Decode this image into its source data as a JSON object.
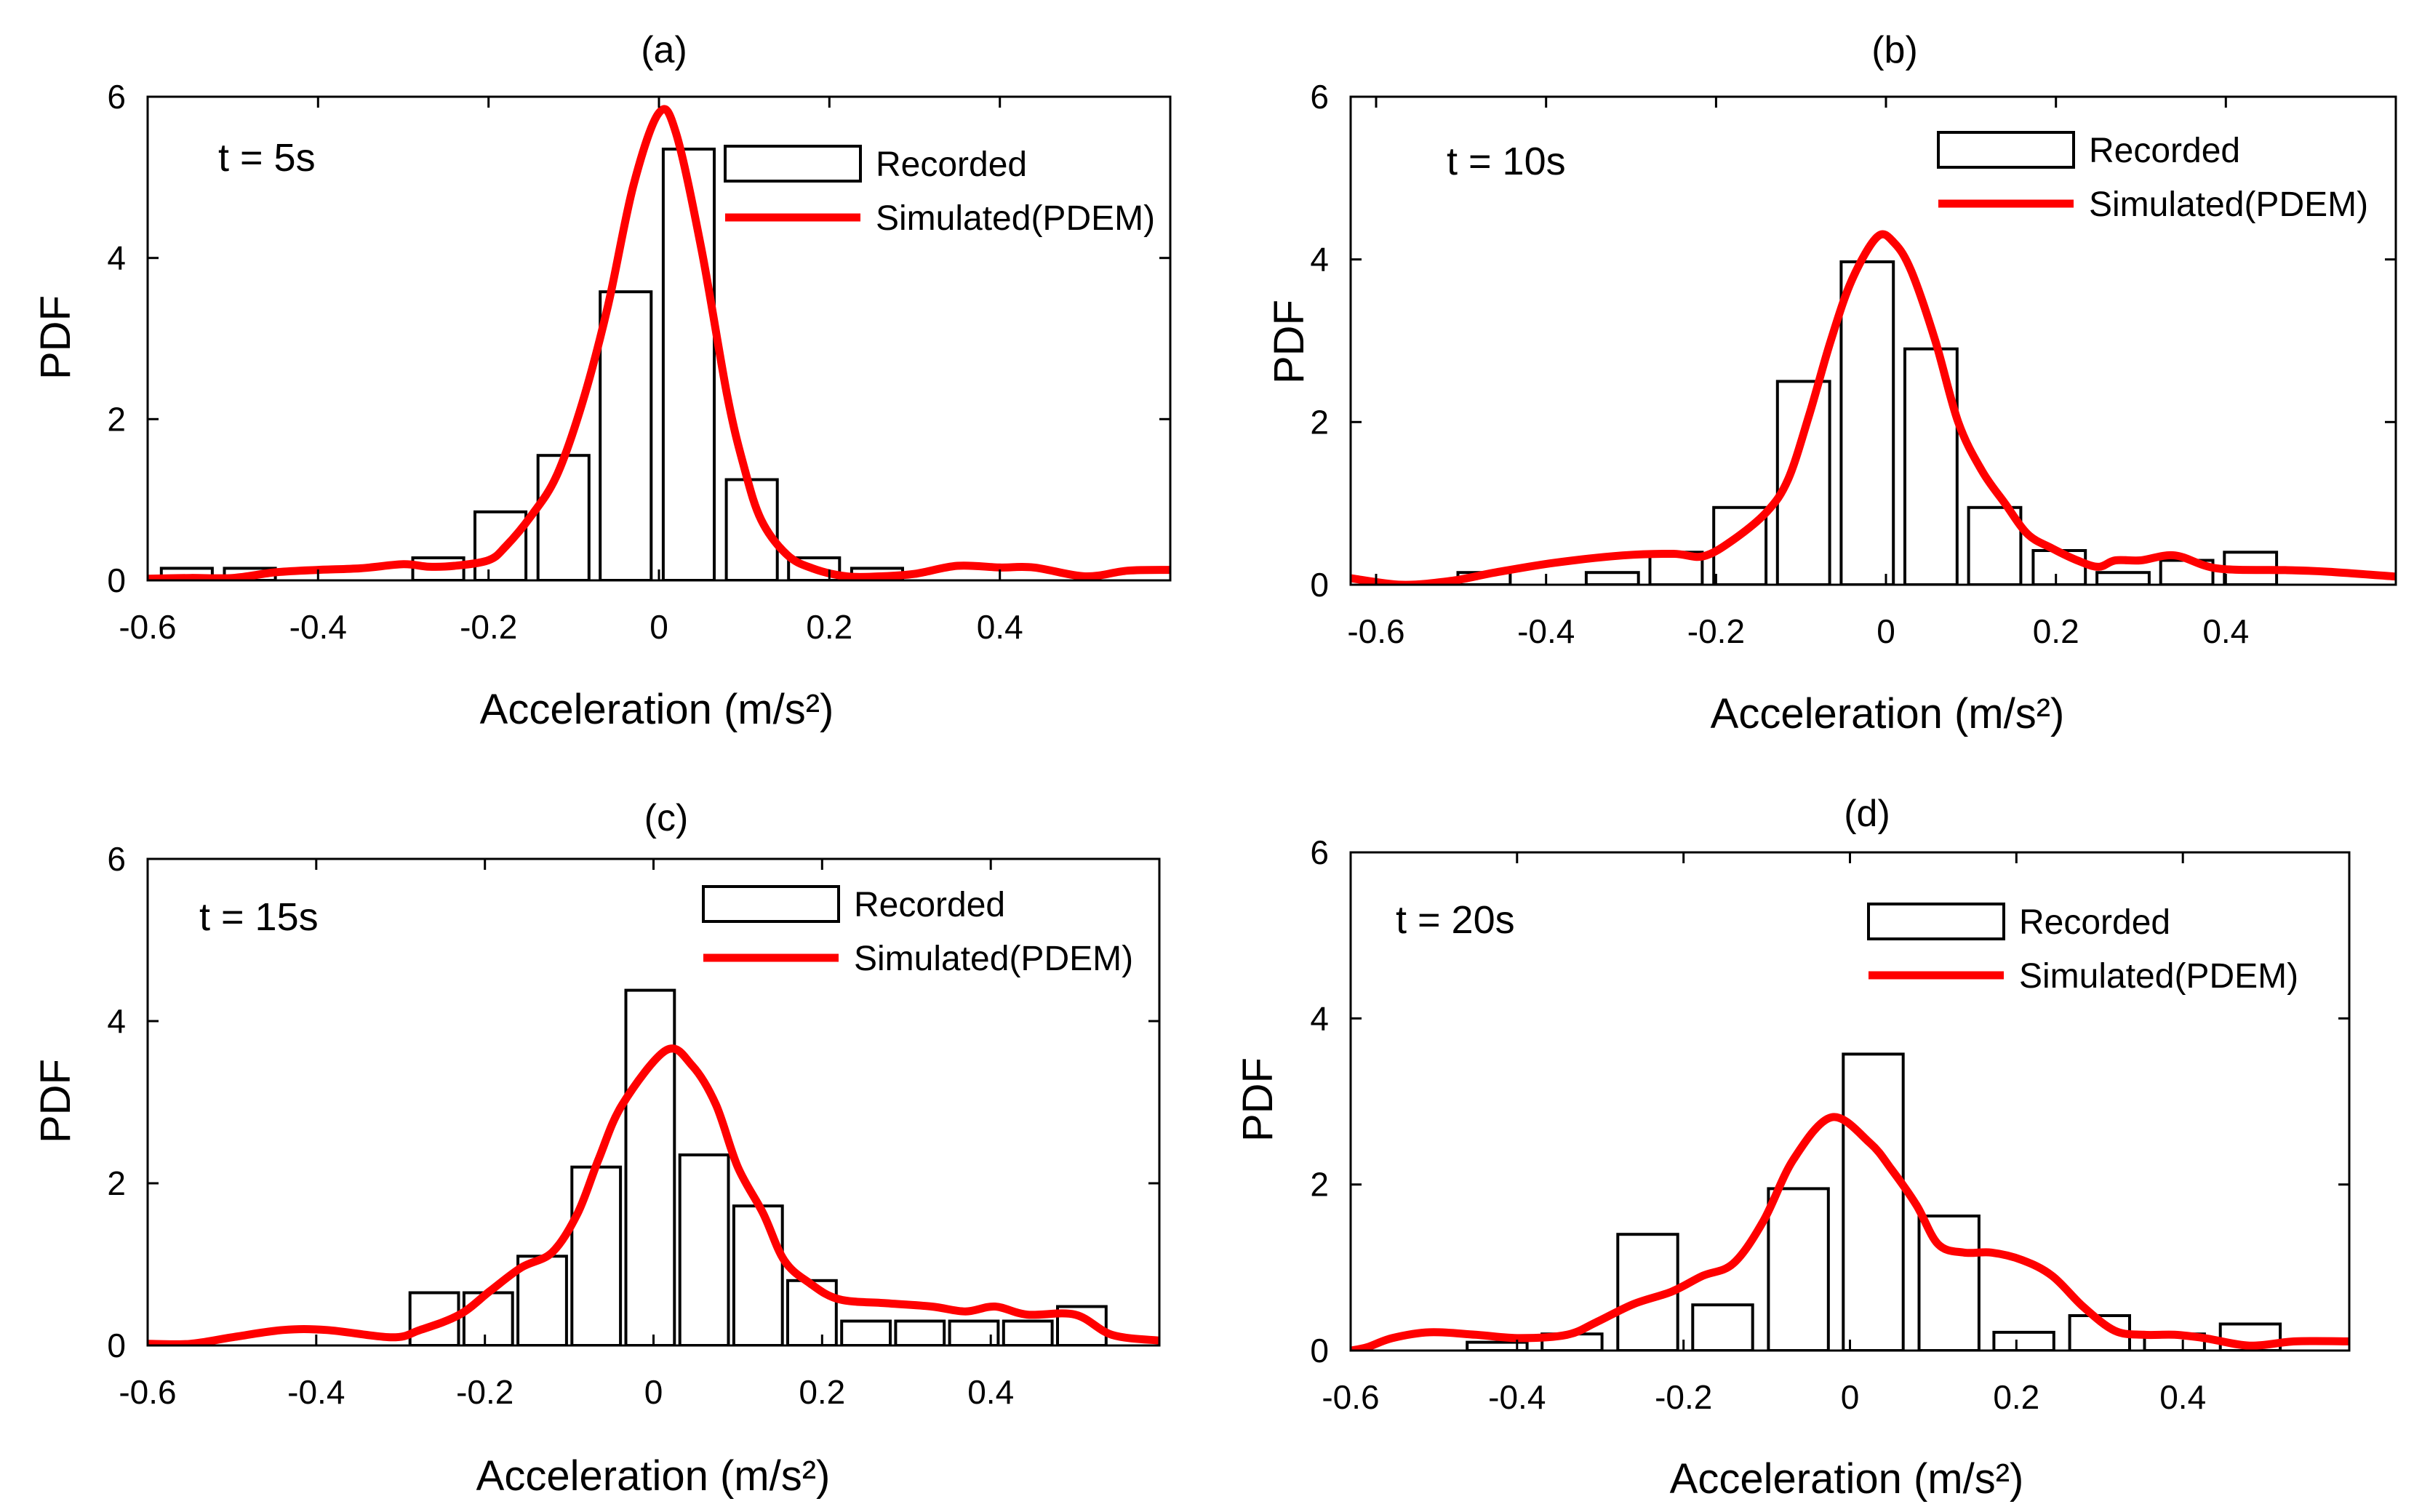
{
  "chart_data": [
    {
      "type": "bar",
      "title": "(a)",
      "annotation": "t = 5s",
      "xlabel": "Acceleration (m/s²)",
      "ylabel": "PDF",
      "xlim": [
        -0.6,
        0.6
      ],
      "ylim": [
        0,
        6
      ],
      "xticks": [
        -0.6,
        -0.4,
        -0.2,
        0,
        0.2,
        0.4
      ],
      "xtick_labels": [
        "-0.6",
        "-0.4",
        "-0.2",
        "0",
        "0.2",
        "0.4"
      ],
      "yticks": [
        0,
        2,
        4,
        6
      ],
      "ytick_labels": [
        "0",
        "2",
        "4",
        "6"
      ],
      "series": [
        {
          "name": "Recorded",
          "color": "#000000",
          "x": [
            -0.554,
            -0.48,
            -0.259,
            -0.186,
            -0.112,
            -0.039,
            0.035,
            0.109,
            0.182,
            0.256
          ],
          "values": [
            0.15,
            0.15,
            0.28,
            0.85,
            1.55,
            3.58,
            5.35,
            1.25,
            0.28,
            0.15
          ]
        },
        {
          "name": "Simulated(PDEM)",
          "color": "#ff0000",
          "x": [
            -0.6,
            -0.55,
            -0.5,
            -0.45,
            -0.4,
            -0.35,
            -0.3,
            -0.27,
            -0.24,
            -0.2,
            -0.18,
            -0.15,
            -0.12,
            -0.09,
            -0.06,
            -0.03,
            0,
            0.02,
            0.05,
            0.08,
            0.1,
            0.12,
            0.15,
            0.18,
            0.22,
            0.26,
            0.3,
            0.35,
            0.4,
            0.44,
            0.5,
            0.55,
            0.6
          ],
          "y": [
            0.02,
            0.03,
            0.03,
            0.1,
            0.13,
            0.15,
            0.2,
            0.17,
            0.18,
            0.25,
            0.42,
            0.8,
            1.3,
            2.2,
            3.4,
            4.9,
            5.8,
            5.55,
            4.1,
            2.3,
            1.4,
            0.75,
            0.32,
            0.15,
            0.05,
            0.05,
            0.08,
            0.18,
            0.16,
            0.16,
            0.05,
            0.12,
            0.13
          ]
        }
      ]
    },
    {
      "type": "bar",
      "title": "(b)",
      "annotation": "t = 10s",
      "xlabel": "Acceleration (m/s²)",
      "ylabel": "PDF",
      "xlim": [
        -0.63,
        0.6
      ],
      "ylim": [
        0,
        6
      ],
      "xticks": [
        -0.6,
        -0.4,
        -0.2,
        0,
        0.2,
        0.4
      ],
      "xtick_labels": [
        "-0.6",
        "-0.4",
        "-0.2",
        "0",
        "0.2",
        "0.4"
      ],
      "yticks": [
        0,
        2,
        4,
        6
      ],
      "ytick_labels": [
        "0",
        "2",
        "4",
        "6"
      ],
      "series": [
        {
          "name": "Recorded",
          "color": "#000000",
          "x": [
            -0.473,
            -0.322,
            -0.247,
            -0.172,
            -0.097,
            -0.022,
            0.053,
            0.128,
            0.204,
            0.279,
            0.354,
            0.429
          ],
          "values": [
            0.15,
            0.15,
            0.4,
            0.95,
            2.5,
            3.97,
            2.9,
            0.95,
            0.42,
            0.15,
            0.3,
            0.4
          ]
        },
        {
          "name": "Simulated(PDEM)",
          "color": "#ff0000",
          "x": [
            -0.63,
            -0.57,
            -0.51,
            -0.46,
            -0.39,
            -0.31,
            -0.25,
            -0.215,
            -0.18,
            -0.14,
            -0.115,
            -0.09,
            -0.065,
            -0.04,
            -0.01,
            0.01,
            0.03,
            0.058,
            0.085,
            0.113,
            0.14,
            0.167,
            0.195,
            0.225,
            0.25,
            0.27,
            0.3,
            0.34,
            0.39,
            0.47,
            0.52,
            0.6
          ],
          "y": [
            0.08,
            0.0,
            0.05,
            0.15,
            0.27,
            0.36,
            0.38,
            0.35,
            0.55,
            0.9,
            1.3,
            2.1,
            3.0,
            3.75,
            4.28,
            4.2,
            3.85,
            3.0,
            2.0,
            1.4,
            1.0,
            0.62,
            0.45,
            0.3,
            0.22,
            0.3,
            0.3,
            0.36,
            0.2,
            0.18,
            0.16,
            0.1
          ]
        }
      ]
    },
    {
      "type": "bar",
      "title": "(c)",
      "annotation": "t = 15s",
      "xlabel": "Acceleration (m/s²)",
      "ylabel": "PDF",
      "xlim": [
        -0.6,
        0.6
      ],
      "ylim": [
        0,
        6
      ],
      "xticks": [
        -0.6,
        -0.4,
        -0.2,
        0,
        0.2,
        0.4
      ],
      "xtick_labels": [
        "-0.6",
        "-0.4",
        "-0.2",
        "0",
        "0.2",
        "0.4"
      ],
      "yticks": [
        0,
        2,
        4,
        6
      ],
      "ytick_labels": [
        "0",
        "2",
        "4",
        "6"
      ],
      "series": [
        {
          "name": "Recorded",
          "color": "#000000",
          "x": [
            -0.26,
            -0.196,
            -0.132,
            -0.068,
            -0.004,
            0.06,
            0.124,
            0.188,
            0.252,
            0.316,
            0.38,
            0.444,
            0.508
          ],
          "values": [
            0.65,
            0.65,
            1.1,
            2.2,
            4.38,
            2.35,
            1.72,
            0.8,
            0.3,
            0.3,
            0.3,
            0.3,
            0.48
          ]
        },
        {
          "name": "Simulated(PDEM)",
          "color": "#ff0000",
          "x": [
            -0.6,
            -0.55,
            -0.5,
            -0.44,
            -0.387,
            -0.31,
            -0.277,
            -0.23,
            -0.194,
            -0.157,
            -0.12,
            -0.09,
            -0.065,
            -0.037,
            0.015,
            0.046,
            0.074,
            0.1,
            0.13,
            0.155,
            0.185,
            0.22,
            0.277,
            0.33,
            0.37,
            0.405,
            0.443,
            0.5,
            0.544,
            0.6
          ],
          "y": [
            0.02,
            0.02,
            0.1,
            0.19,
            0.19,
            0.1,
            0.19,
            0.38,
            0.67,
            0.96,
            1.15,
            1.63,
            2.3,
            2.97,
            3.64,
            3.45,
            2.97,
            2.2,
            1.63,
            1.05,
            0.77,
            0.57,
            0.52,
            0.48,
            0.42,
            0.48,
            0.38,
            0.38,
            0.13,
            0.06
          ]
        }
      ]
    },
    {
      "type": "bar",
      "title": "(d)",
      "annotation": "t = 20s",
      "xlabel": "Acceleration (m/s²)",
      "ylabel": "PDF",
      "xlim": [
        -0.6,
        0.6
      ],
      "ylim": [
        0,
        6
      ],
      "xticks": [
        -0.6,
        -0.4,
        -0.2,
        0,
        0.2,
        0.4
      ],
      "xtick_labels": [
        "-0.6",
        "-0.4",
        "-0.2",
        "0",
        "0.2",
        "0.4"
      ],
      "yticks": [
        0,
        2,
        4,
        6
      ],
      "ytick_labels": [
        "0",
        "2",
        "4",
        "6"
      ],
      "series": [
        {
          "name": "Recorded",
          "color": "#000000",
          "x": [
            -0.424,
            -0.334,
            -0.243,
            -0.153,
            -0.062,
            0.028,
            0.119,
            0.209,
            0.3,
            0.39,
            0.481
          ],
          "values": [
            0.1,
            0.2,
            1.4,
            0.55,
            1.95,
            3.57,
            1.62,
            0.22,
            0.42,
            0.2,
            0.32
          ]
        },
        {
          "name": "Simulated(PDEM)",
          "color": "#ff0000",
          "x": [
            -0.6,
            -0.58,
            -0.55,
            -0.505,
            -0.45,
            -0.397,
            -0.34,
            -0.305,
            -0.26,
            -0.214,
            -0.177,
            -0.14,
            -0.104,
            -0.068,
            -0.022,
            0.024,
            0.05,
            0.08,
            0.106,
            0.137,
            0.17,
            0.207,
            0.243,
            0.28,
            0.318,
            0.353,
            0.39,
            0.426,
            0.48,
            0.535,
            0.6
          ],
          "y": [
            0.0,
            0.04,
            0.15,
            0.22,
            0.19,
            0.15,
            0.19,
            0.34,
            0.56,
            0.71,
            0.9,
            1.05,
            1.56,
            2.3,
            2.81,
            2.5,
            2.18,
            1.75,
            1.28,
            1.18,
            1.18,
            1.09,
            0.9,
            0.53,
            0.24,
            0.19,
            0.19,
            0.15,
            0.06,
            0.11,
            0.11
          ]
        }
      ]
    }
  ]
}
